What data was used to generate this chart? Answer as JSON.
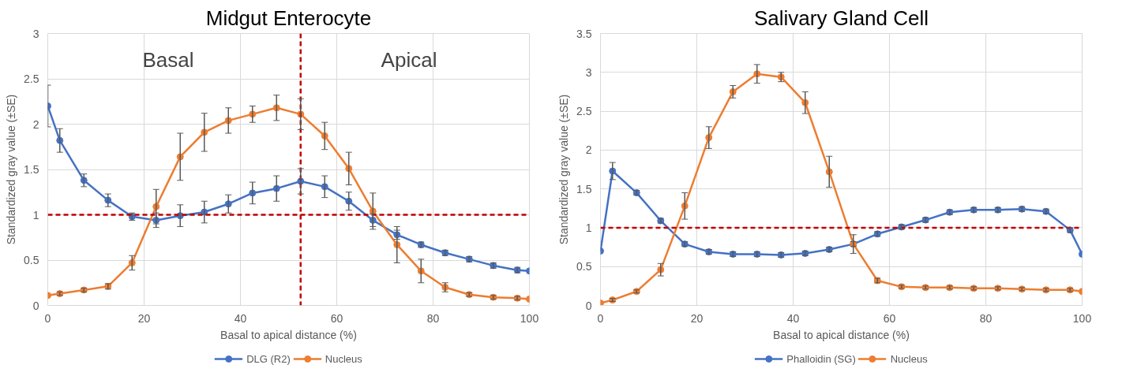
{
  "chart_data": [
    {
      "type": "line",
      "title": "Midgut Enterocyte",
      "xlabel": "Basal to apical distance (%)",
      "ylabel": "Standardized gray value (±SE)",
      "x": [
        0,
        2.5,
        7.5,
        12.5,
        17.5,
        22.5,
        27.5,
        32.5,
        37.5,
        42.5,
        47.5,
        52.5,
        57.5,
        62.5,
        67.5,
        72.5,
        77.5,
        82.5,
        87.5,
        92.5,
        97.5,
        100
      ],
      "series": [
        {
          "name": "DLG (R2)",
          "color": "#4472c4",
          "values": [
            2.2,
            1.82,
            1.38,
            1.16,
            0.98,
            0.94,
            0.99,
            1.03,
            1.12,
            1.24,
            1.29,
            1.37,
            1.31,
            1.15,
            0.94,
            0.78,
            0.67,
            0.58,
            0.51,
            0.44,
            0.39,
            0.38
          ],
          "errors": [
            0.23,
            0.13,
            0.07,
            0.07,
            0.04,
            0.08,
            0.12,
            0.12,
            0.1,
            0.12,
            0.14,
            0.14,
            0.12,
            0.1,
            0.07,
            0.05,
            0.03,
            0.03,
            0.03,
            0.03,
            0.03,
            null
          ]
        },
        {
          "name": "Nucleus",
          "color": "#ed7d31",
          "values": [
            0.11,
            0.13,
            0.17,
            0.21,
            0.47,
            1.09,
            1.64,
            1.91,
            2.04,
            2.11,
            2.18,
            2.11,
            1.87,
            1.51,
            1.04,
            0.67,
            0.38,
            0.2,
            0.12,
            0.09,
            0.08,
            0.07
          ],
          "errors": [
            null,
            0.02,
            0.02,
            0.03,
            0.08,
            0.19,
            0.26,
            0.21,
            0.14,
            0.09,
            0.14,
            0.17,
            0.15,
            0.18,
            0.2,
            0.2,
            0.13,
            0.05,
            0.02,
            0.02,
            0.02,
            null
          ]
        }
      ],
      "xlim": [
        0,
        100
      ],
      "ylim": [
        0,
        3
      ],
      "xticks": [
        0,
        20,
        40,
        60,
        80,
        100
      ],
      "yticks": [
        0,
        0.5,
        1,
        1.5,
        2,
        2.5,
        3
      ],
      "grid": true,
      "legend": "bottom",
      "marker": "circle",
      "line_style": "solid",
      "ref_lines": [
        {
          "axis": "y",
          "value": 1,
          "color": "#c00000",
          "line_style": "dashed"
        },
        {
          "axis": "x",
          "value": 52.5,
          "color": "#c00000",
          "line_style": "dashed"
        }
      ],
      "annotations": [
        "Basal",
        "Apical"
      ]
    },
    {
      "type": "line",
      "title": "Salivary Gland Cell",
      "xlabel": "Basal to apical distance (%)",
      "ylabel": "Standardized gray value (±SE)",
      "x": [
        0,
        2.5,
        7.5,
        12.5,
        17.5,
        22.5,
        27.5,
        32.5,
        37.5,
        42.5,
        47.5,
        52.5,
        57.5,
        62.5,
        67.5,
        72.5,
        77.5,
        82.5,
        87.5,
        92.5,
        97.5,
        100
      ],
      "series": [
        {
          "name": "Phalloidin (SG)",
          "color": "#4472c4",
          "values": [
            0.7,
            1.73,
            1.45,
            1.09,
            0.79,
            0.69,
            0.66,
            0.66,
            0.65,
            0.67,
            0.72,
            0.79,
            0.92,
            1.01,
            1.1,
            1.2,
            1.23,
            1.23,
            1.24,
            1.21,
            0.97,
            0.66
          ],
          "errors": [
            null,
            0.11,
            0.03,
            0.03,
            0.03,
            0.03,
            0.03,
            0.03,
            0.03,
            0.03,
            0.03,
            0.03,
            0.03,
            0.03,
            0.03,
            0.03,
            0.03,
            0.03,
            0.03,
            0.03,
            0.03,
            null
          ]
        },
        {
          "name": "Nucleus",
          "color": "#ed7d31",
          "values": [
            0.03,
            0.07,
            0.18,
            0.46,
            1.28,
            2.16,
            2.75,
            2.98,
            2.94,
            2.61,
            1.72,
            0.79,
            0.32,
            0.24,
            0.23,
            0.23,
            0.22,
            0.22,
            0.21,
            0.2,
            0.2,
            0.18
          ],
          "errors": [
            null,
            0.02,
            0.02,
            0.08,
            0.17,
            0.14,
            0.08,
            0.12,
            0.06,
            0.14,
            0.2,
            0.12,
            0.03,
            0.02,
            0.02,
            0.02,
            0.02,
            0.02,
            0.02,
            0.02,
            0.02,
            null
          ]
        }
      ],
      "xlim": [
        0,
        100
      ],
      "ylim": [
        0,
        3.5
      ],
      "xticks": [
        0,
        20,
        40,
        60,
        80,
        100
      ],
      "yticks": [
        0,
        0.5,
        1,
        1.5,
        2,
        2.5,
        3,
        3.5
      ],
      "grid": true,
      "legend": "bottom",
      "marker": "circle",
      "line_style": "solid",
      "ref_lines": [
        {
          "axis": "y",
          "value": 1,
          "color": "#c00000",
          "line_style": "dashed"
        }
      ]
    }
  ]
}
